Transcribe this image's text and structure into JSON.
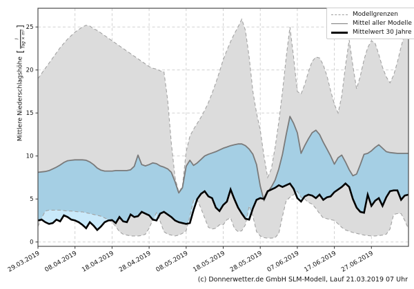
{
  "footer": {
    "credit": "(c) Donnerwetter.de GmbH SLM-Modell, Lauf 21.03.2019 07 Uhr"
  },
  "chart_data": {
    "type": "area",
    "title": "",
    "ylabel": {
      "text": "Mittlere Niederschlagshöhe",
      "bracket_open": "[",
      "unit_numerator": "l",
      "unit_denominator": "Tag × m²",
      "bracket_close": "]"
    },
    "xlabel": "",
    "x_unit": "Datum (Tage ab 29.03.2019, 10-Tage-Schritte)",
    "x_tick_days": [
      0,
      10,
      20,
      30,
      40,
      50,
      60,
      70,
      80,
      90
    ],
    "x_tick_labels": [
      "29.03.2019",
      "08.04.2019",
      "18.04.2019",
      "28.04.2019",
      "08.05.2019",
      "18.05.2019",
      "28.05.2019",
      "07.06.2019",
      "17.06.2019",
      "27.06.2019"
    ],
    "y_ticks": [
      0,
      5,
      10,
      15,
      20,
      25
    ],
    "ylim": [
      -0.5,
      27.2
    ],
    "xlim_days": [
      0,
      100
    ],
    "grid": "dashed both axes",
    "legend_position": "upper right",
    "legend": [
      {
        "label": "Modellgrenzen",
        "style": "dashed-gray"
      },
      {
        "label": "Mittel aller Modelle",
        "style": "solid-gray"
      },
      {
        "label": "Mittelwert 30 Jahre",
        "style": "solid-black-thick"
      }
    ],
    "colors": {
      "model_range_fill": "#dcdcdc",
      "model_bound_line": "#a2a2a2",
      "surplus_fill_dark": "#a5cfe4",
      "surplus_fill_light": "#c9e9fa",
      "deficit_fill_pink": "#edcac4",
      "model_mean_line": "#7a7a7a",
      "climate_mean_line": "#000000",
      "gridline": "#cccccc",
      "spine": "#4a4a4a",
      "background": "#ffffff"
    },
    "series": [
      {
        "name": "Modellgrenzen (obere Grenze)",
        "values": [
          19.0,
          19.6,
          20.2,
          20.8,
          21.4,
          22.0,
          22.6,
          23.1,
          23.6,
          24.0,
          24.4,
          24.7,
          25.0,
          25.2,
          25.1,
          24.8,
          24.6,
          24.3,
          24.0,
          23.7,
          23.4,
          23.1,
          22.8,
          22.5,
          22.2,
          21.9,
          21.6,
          21.3,
          21.0,
          20.7,
          20.4,
          20.2,
          20.1,
          19.9,
          19.8,
          16.5,
          11.5,
          7.5,
          5.8,
          6.5,
          10.5,
          12.3,
          13.1,
          13.8,
          14.5,
          15.3,
          16.2,
          17.3,
          18.5,
          19.8,
          21.2,
          22.3,
          23.3,
          24.2,
          25.0,
          25.9,
          24.6,
          21.5,
          17.5,
          15.0,
          13.0,
          10.0,
          7.5,
          8.5,
          11.0,
          14.0,
          17.5,
          21.5,
          25.0,
          21.5,
          17.5,
          17.2,
          18.3,
          19.8,
          21.0,
          21.5,
          21.4,
          20.6,
          19.3,
          17.6,
          16.0,
          15.0,
          17.0,
          20.5,
          23.5,
          20.5,
          17.8,
          19.3,
          21.2,
          22.6,
          23.4,
          23.1,
          21.8,
          20.3,
          19.2,
          18.5,
          19.4,
          20.9,
          22.7,
          24.2,
          25.3
        ]
      },
      {
        "name": "Mittel aller Modelle",
        "values": [
          8.1,
          8.15,
          8.2,
          8.3,
          8.5,
          8.7,
          8.95,
          9.25,
          9.45,
          9.5,
          9.55,
          9.55,
          9.55,
          9.5,
          9.3,
          9.0,
          8.6,
          8.35,
          8.25,
          8.25,
          8.25,
          8.3,
          8.3,
          8.3,
          8.3,
          8.4,
          8.8,
          10.1,
          9.0,
          8.85,
          9.0,
          9.2,
          9.1,
          8.85,
          8.7,
          8.5,
          8.1,
          7.0,
          5.7,
          6.3,
          8.8,
          9.5,
          8.9,
          9.2,
          9.6,
          10.0,
          10.2,
          10.35,
          10.5,
          10.7,
          10.9,
          11.05,
          11.2,
          11.3,
          11.4,
          11.4,
          11.2,
          10.8,
          10.2,
          9.0,
          6.5,
          4.8,
          5.8,
          6.4,
          7.2,
          8.5,
          10.2,
          12.5,
          14.6,
          13.8,
          12.7,
          10.3,
          11.2,
          12.0,
          12.7,
          13.0,
          12.5,
          11.6,
          10.8,
          10.0,
          9.05,
          9.8,
          10.1,
          9.3,
          8.4,
          7.7,
          7.9,
          9.0,
          10.2,
          10.3,
          10.6,
          11.0,
          11.3,
          10.9,
          10.5,
          10.4,
          10.35,
          10.3,
          10.3,
          10.3,
          10.3
        ]
      },
      {
        "name": "Mittelwert 30 Jahre",
        "values": [
          2.5,
          2.6,
          2.3,
          2.1,
          2.2,
          2.6,
          2.4,
          3.1,
          2.9,
          2.6,
          2.5,
          2.3,
          2.0,
          1.6,
          2.3,
          1.9,
          1.4,
          1.8,
          2.3,
          2.5,
          2.55,
          2.2,
          2.9,
          2.4,
          2.3,
          3.2,
          2.9,
          3.0,
          3.5,
          3.3,
          3.1,
          2.6,
          2.5,
          3.3,
          3.5,
          3.2,
          2.9,
          2.5,
          2.3,
          2.2,
          2.1,
          2.2,
          3.7,
          5.0,
          5.6,
          5.9,
          5.3,
          5.1,
          4.0,
          3.6,
          4.3,
          4.7,
          6.1,
          5.0,
          4.0,
          3.3,
          2.7,
          2.6,
          3.9,
          4.9,
          5.1,
          5.0,
          5.9,
          6.1,
          6.3,
          6.6,
          6.4,
          6.6,
          6.8,
          6.2,
          5.1,
          4.7,
          5.3,
          5.5,
          5.4,
          5.1,
          5.5,
          4.9,
          5.2,
          5.3,
          5.8,
          6.1,
          6.4,
          6.8,
          6.4,
          5.0,
          4.0,
          3.5,
          3.4,
          5.5,
          4.2,
          4.8,
          5.1,
          4.2,
          5.2,
          5.9,
          6.0,
          6.0,
          4.9,
          5.4,
          5.5
        ]
      },
      {
        "name": "Modellgrenzen (untere Grenze)",
        "values": [
          1.8,
          2.8,
          3.6,
          3.7,
          3.7,
          3.7,
          3.7,
          3.65,
          3.6,
          3.6,
          3.55,
          3.5,
          3.5,
          3.4,
          3.3,
          3.2,
          3.1,
          3.0,
          2.8,
          2.6,
          2.3,
          1.8,
          1.2,
          0.9,
          0.8,
          0.7,
          0.7,
          0.7,
          0.75,
          0.9,
          1.6,
          2.6,
          3.4,
          2.4,
          1.2,
          0.9,
          0.8,
          0.7,
          0.8,
          1.0,
          1.3,
          3.0,
          4.85,
          4.9,
          3.9,
          2.8,
          1.7,
          1.5,
          1.6,
          2.0,
          2.0,
          2.6,
          2.8,
          1.6,
          1.2,
          1.3,
          2.0,
          4.2,
          3.0,
          1.2,
          0.7,
          0.5,
          0.45,
          0.45,
          0.5,
          1.0,
          3.0,
          4.8,
          5.2,
          5.5,
          5.9,
          5.2,
          5.0,
          4.6,
          4.4,
          3.9,
          3.3,
          2.8,
          2.7,
          2.6,
          2.5,
          2.1,
          1.7,
          1.4,
          1.25,
          1.1,
          1.0,
          0.9,
          0.8,
          0.75,
          0.7,
          0.7,
          0.75,
          0.8,
          0.9,
          1.5,
          3.2,
          3.3,
          3.3,
          2.5,
          1.5
        ]
      }
    ]
  }
}
